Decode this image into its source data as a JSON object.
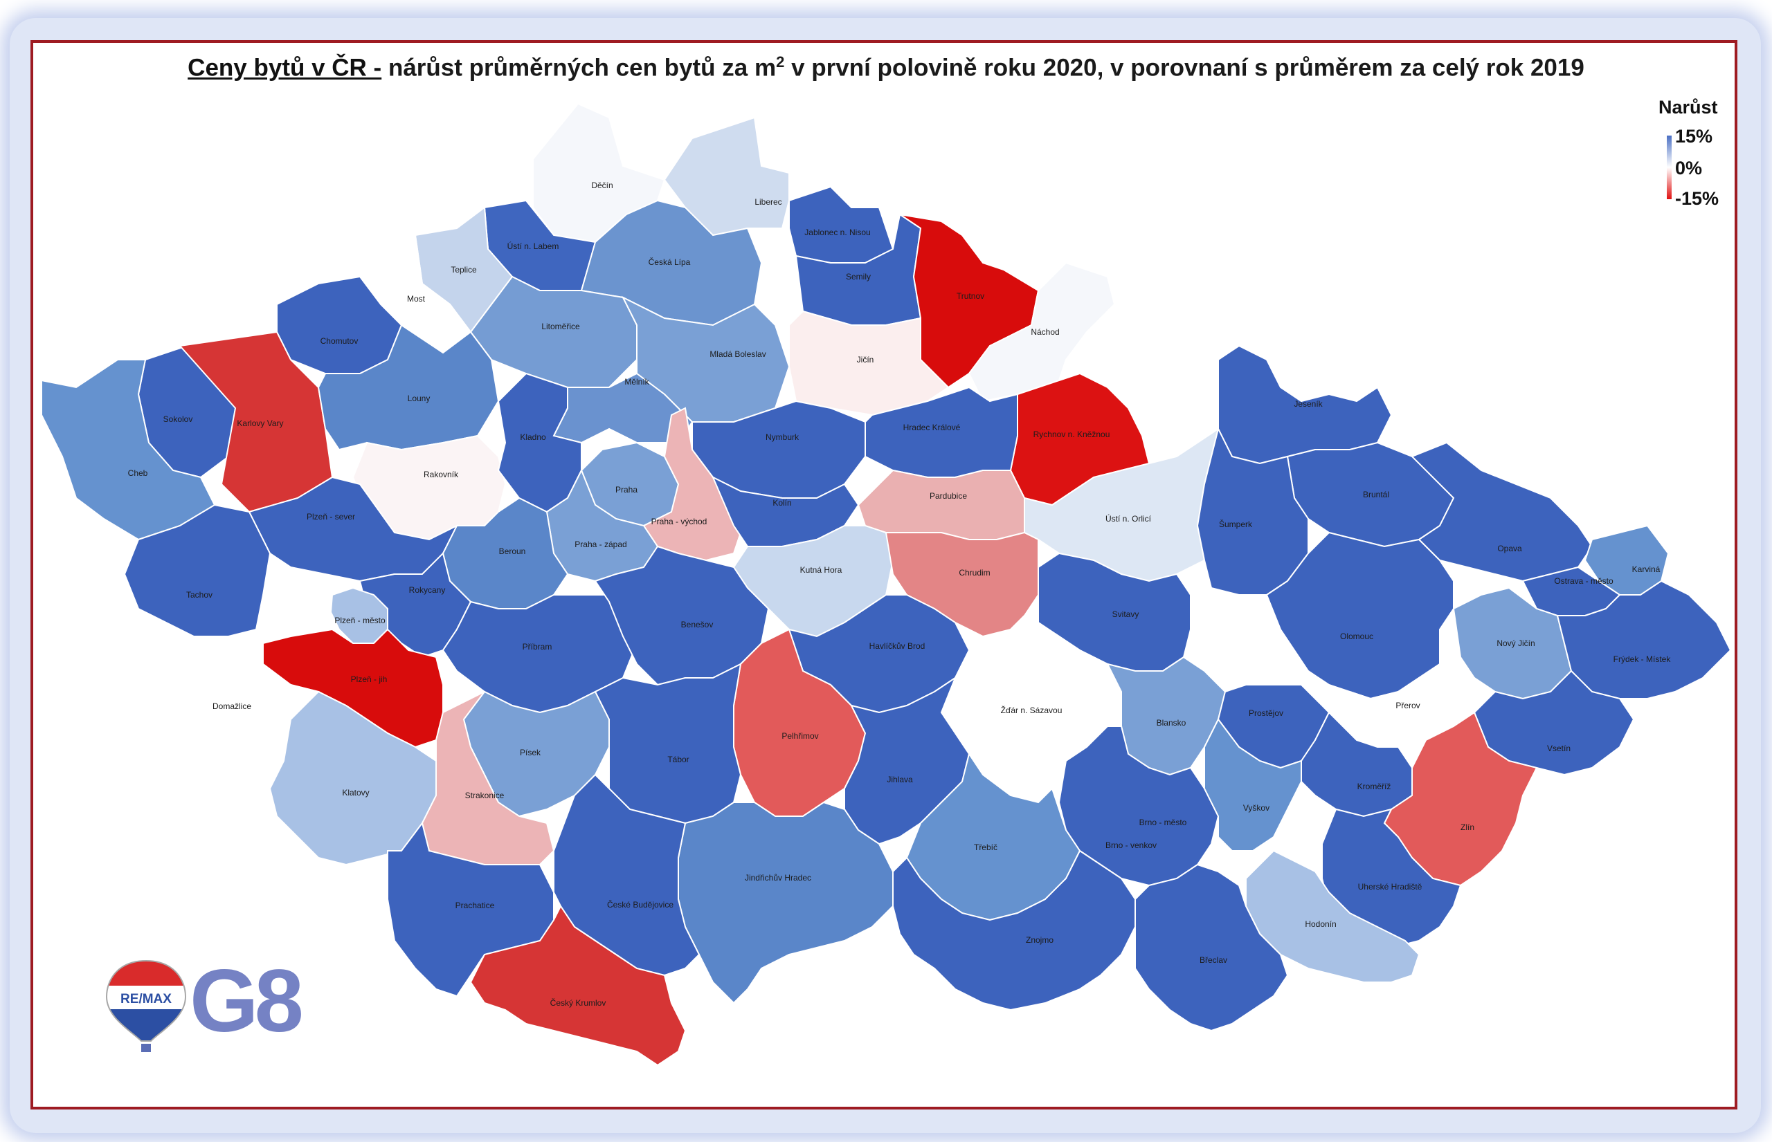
{
  "title": {
    "bold_part": "Ceny bytů v ČR -",
    "rest_part": "nárůst průměrných cen bytů za m",
    "superscript": "2",
    "tail_part": "v první polovině roku 2020, v porovnaní s průměrem za celý rok 2019"
  },
  "legend": {
    "title": "Narůst",
    "max_label": "15%",
    "mid_label": "0%",
    "min_label": "-15%",
    "color_max": "#4a6fc3",
    "color_mid": "#ffffff",
    "color_min": "#e01010"
  },
  "logo": {
    "brand_text": "RE/MAX",
    "office_text": "G8"
  },
  "regions": [
    {
      "name": "Děčín",
      "color": "#f5f7fb"
    },
    {
      "name": "Liberec",
      "color": "#cfdcef"
    },
    {
      "name": "Ústí n. Labem",
      "color": "#3f66bf"
    },
    {
      "name": "Teplice",
      "color": "#c4d4ec"
    },
    {
      "name": "Most",
      "color": "#ffffff"
    },
    {
      "name": "Česká Lípa",
      "color": "#6b94cf"
    },
    {
      "name": "Jablonec n. Nisou",
      "color": "#3d63bd"
    },
    {
      "name": "Semily",
      "color": "#3d63bd"
    },
    {
      "name": "Trutnov",
      "color": "#d80c0c"
    },
    {
      "name": "Náchod",
      "color": "#f5f7fb"
    },
    {
      "name": "Chomutov",
      "color": "#3d63bd"
    },
    {
      "name": "Litoměřice",
      "color": "#759cd3"
    },
    {
      "name": "Mladá Boleslav",
      "color": "#7aa0d5"
    },
    {
      "name": "Jičín",
      "color": "#fbeeee"
    },
    {
      "name": "Sokolov",
      "color": "#3d63bd"
    },
    {
      "name": "Karlovy Vary",
      "color": "#d63535"
    },
    {
      "name": "Louny",
      "color": "#5a86c9"
    },
    {
      "name": "Mělník",
      "color": "#6a92cf"
    },
    {
      "name": "Rychnov n. Kněžnou",
      "color": "#dc1212"
    },
    {
      "name": "Cheb",
      "color": "#6592cf"
    },
    {
      "name": "Rakovník",
      "color": "#fbf4f5"
    },
    {
      "name": "Kladno",
      "color": "#3d63bd"
    },
    {
      "name": "Nymburk",
      "color": "#3d63bd"
    },
    {
      "name": "Hradec Králové",
      "color": "#3d63bd"
    },
    {
      "name": "Praha",
      "color": "#7aa0d5"
    },
    {
      "name": "Praha - východ",
      "color": "#ecb4b6"
    },
    {
      "name": "Kolín",
      "color": "#3d63bd"
    },
    {
      "name": "Pardubice",
      "color": "#eab0b1"
    },
    {
      "name": "Ústí n. Orlicí",
      "color": "#dde7f4"
    },
    {
      "name": "Jeseník",
      "color": "#3d63bd"
    },
    {
      "name": "Plzeň - sever",
      "color": "#3d63bd"
    },
    {
      "name": "Praha - západ",
      "color": "#7aa0d5"
    },
    {
      "name": "Beroun",
      "color": "#5a86c9"
    },
    {
      "name": "Kutná Hora",
      "color": "#c8d8ee"
    },
    {
      "name": "Chrudim",
      "color": "#e38586"
    },
    {
      "name": "Bruntál",
      "color": "#3d63bd"
    },
    {
      "name": "Šumperk",
      "color": "#3d63bd"
    },
    {
      "name": "Tachov",
      "color": "#3d63bd"
    },
    {
      "name": "Rokycany",
      "color": "#3d63bd"
    },
    {
      "name": "Plzeň - město",
      "color": "#a8c1e5"
    },
    {
      "name": "Příbram",
      "color": "#3d63bd"
    },
    {
      "name": "Benešov",
      "color": "#3d63bd"
    },
    {
      "name": "Havlíčkův Brod",
      "color": "#3d63bd"
    },
    {
      "name": "Svitavy",
      "color": "#3d63bd"
    },
    {
      "name": "Opava",
      "color": "#3d63bd"
    },
    {
      "name": "Karviná",
      "color": "#6592cf"
    },
    {
      "name": "Ostrava - město",
      "color": "#3d63bd"
    },
    {
      "name": "Plzeň - jih",
      "color": "#d80c0c"
    },
    {
      "name": "Domažlice",
      "color": "#ffffff"
    },
    {
      "name": "Olomouc",
      "color": "#3d63bd"
    },
    {
      "name": "Nový Jičín",
      "color": "#7aa0d5"
    },
    {
      "name": "Frýdek - Místek",
      "color": "#3d63bd"
    },
    {
      "name": "Písek",
      "color": "#7aa0d5"
    },
    {
      "name": "Pelhřimov",
      "color": "#e25a5a"
    },
    {
      "name": "Žďár n. Sázavou",
      "color": "#ffffff"
    },
    {
      "name": "Blansko",
      "color": "#7aa0d5"
    },
    {
      "name": "Přerov",
      "color": "#ffffff"
    },
    {
      "name": "Klatovy",
      "color": "#a8c1e5"
    },
    {
      "name": "Strakonice",
      "color": "#ecb4b6"
    },
    {
      "name": "Tábor",
      "color": "#3d63bd"
    },
    {
      "name": "Jihlava",
      "color": "#3d63bd"
    },
    {
      "name": "Prostějov",
      "color": "#3d63bd"
    },
    {
      "name": "Vsetín",
      "color": "#3d63bd"
    },
    {
      "name": "Kroměříž",
      "color": "#3d63bd"
    },
    {
      "name": "Zlín",
      "color": "#e25a5a"
    },
    {
      "name": "Brno - město",
      "color": "#6592cf"
    },
    {
      "name": "Brno - venkov",
      "color": "#3d63bd"
    },
    {
      "name": "Vyškov",
      "color": "#6592cf"
    },
    {
      "name": "Třebíč",
      "color": "#6592cf"
    },
    {
      "name": "Jindřichův Hradec",
      "color": "#5a86c9"
    },
    {
      "name": "Prachatice",
      "color": "#3d63bd"
    },
    {
      "name": "České Budějovice",
      "color": "#3d63bd"
    },
    {
      "name": "Uherské Hradiště",
      "color": "#3d63bd"
    },
    {
      "name": "Hodonín",
      "color": "#a8c1e5"
    },
    {
      "name": "Znojmo",
      "color": "#3d63bd"
    },
    {
      "name": "Břeclav",
      "color": "#3d63bd"
    },
    {
      "name": "Český Krumlov",
      "color": "#d63535"
    }
  ]
}
